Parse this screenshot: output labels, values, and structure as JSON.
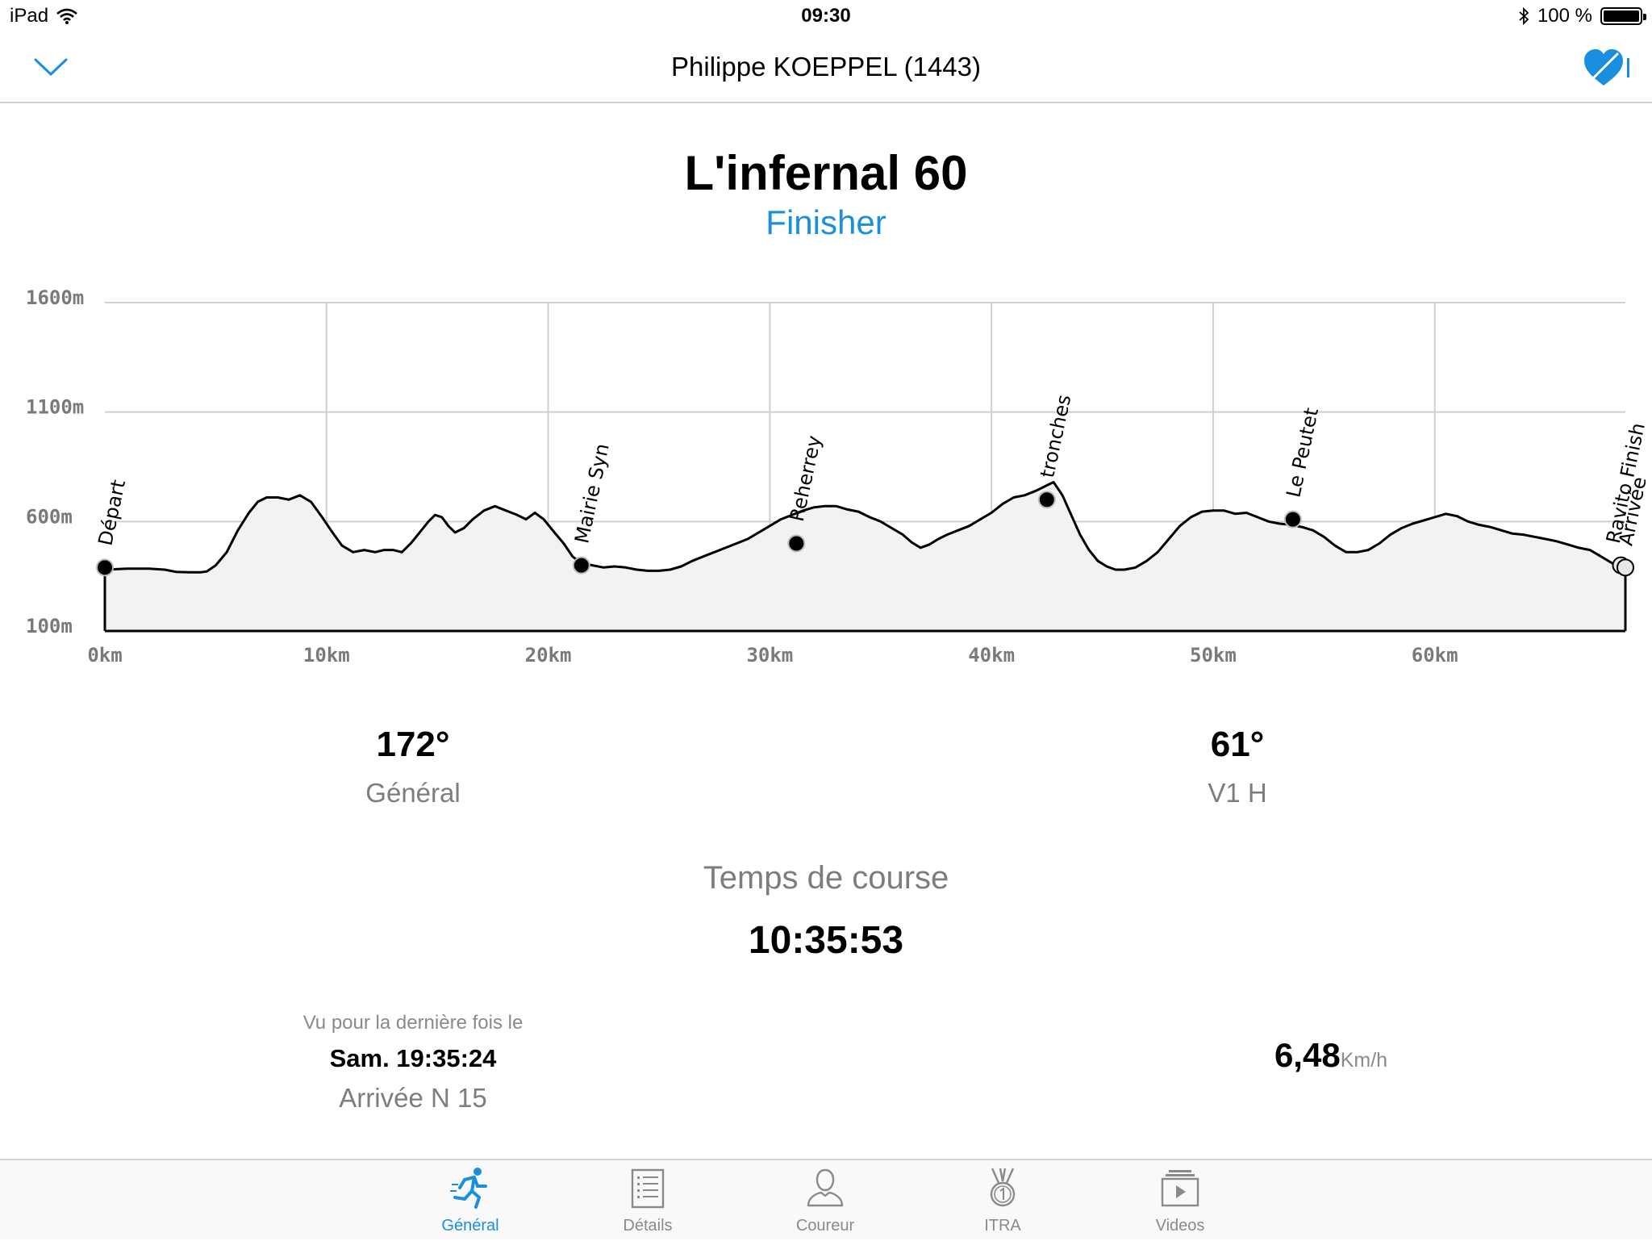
{
  "status_bar": {
    "device": "iPad",
    "time": "09:30",
    "battery": "100 %",
    "icons": [
      "wifi-icon",
      "bluetooth-icon",
      "battery-icon"
    ]
  },
  "nav": {
    "title": "Philippe KOEPPEL (1443)",
    "back_icon": "chevron-down-icon",
    "fav_icon": "heart-icon",
    "accent": "#1a8fe0"
  },
  "race": {
    "title": "L'infernal 60",
    "status": "Finisher"
  },
  "chart_data": {
    "type": "area",
    "x_unit": "km",
    "y_unit": "m",
    "xlim": [
      0,
      68.6
    ],
    "ylim": [
      100,
      1600
    ],
    "x_ticks": [
      "0km",
      "10km",
      "20km",
      "30km",
      "40km",
      "50km",
      "60km"
    ],
    "y_ticks": [
      "1600m",
      "1100m",
      "600m",
      "100m"
    ],
    "grid": true,
    "profile": [
      [
        0,
        380
      ],
      [
        1,
        385
      ],
      [
        2,
        385
      ],
      [
        2.7,
        380
      ],
      [
        3.2,
        370
      ],
      [
        3.8,
        368
      ],
      [
        4.3,
        368
      ],
      [
        4.6,
        372
      ],
      [
        5.0,
        400
      ],
      [
        5.5,
        460
      ],
      [
        6.0,
        560
      ],
      [
        6.5,
        640
      ],
      [
        6.9,
        690
      ],
      [
        7.3,
        710
      ],
      [
        7.8,
        710
      ],
      [
        8.3,
        700
      ],
      [
        8.8,
        720
      ],
      [
        9.3,
        690
      ],
      [
        9.8,
        620
      ],
      [
        10.2,
        560
      ],
      [
        10.7,
        490
      ],
      [
        11.2,
        460
      ],
      [
        11.7,
        470
      ],
      [
        12.2,
        460
      ],
      [
        12.6,
        470
      ],
      [
        13.0,
        470
      ],
      [
        13.4,
        460
      ],
      [
        13.8,
        500
      ],
      [
        14.2,
        550
      ],
      [
        14.6,
        600
      ],
      [
        14.9,
        630
      ],
      [
        15.2,
        620
      ],
      [
        15.5,
        580
      ],
      [
        15.8,
        550
      ],
      [
        16.2,
        570
      ],
      [
        16.6,
        610
      ],
      [
        17.1,
        650
      ],
      [
        17.6,
        670
      ],
      [
        18.1,
        650
      ],
      [
        18.6,
        630
      ],
      [
        19.0,
        610
      ],
      [
        19.4,
        640
      ],
      [
        19.8,
        610
      ],
      [
        20.2,
        560
      ],
      [
        20.7,
        500
      ],
      [
        21.1,
        440
      ],
      [
        21.5,
        410
      ],
      [
        22.0,
        400
      ],
      [
        22.5,
        390
      ],
      [
        23.0,
        395
      ],
      [
        23.5,
        390
      ],
      [
        24.0,
        380
      ],
      [
        24.5,
        375
      ],
      [
        25.0,
        375
      ],
      [
        25.5,
        380
      ],
      [
        26.0,
        395
      ],
      [
        26.5,
        420
      ],
      [
        27.0,
        440
      ],
      [
        27.5,
        460
      ],
      [
        28.0,
        480
      ],
      [
        28.5,
        500
      ],
      [
        29.0,
        520
      ],
      [
        29.5,
        550
      ],
      [
        30.0,
        580
      ],
      [
        30.5,
        610
      ],
      [
        31.0,
        630
      ],
      [
        31.5,
        650
      ],
      [
        32.0,
        665
      ],
      [
        32.5,
        670
      ],
      [
        33.0,
        670
      ],
      [
        33.5,
        655
      ],
      [
        34.0,
        645
      ],
      [
        34.5,
        620
      ],
      [
        35.0,
        600
      ],
      [
        35.5,
        570
      ],
      [
        36.0,
        540
      ],
      [
        36.4,
        505
      ],
      [
        36.8,
        480
      ],
      [
        37.2,
        495
      ],
      [
        37.6,
        520
      ],
      [
        38.0,
        540
      ],
      [
        38.5,
        560
      ],
      [
        39.0,
        580
      ],
      [
        39.5,
        610
      ],
      [
        40.0,
        640
      ],
      [
        40.5,
        680
      ],
      [
        41.0,
        710
      ],
      [
        41.5,
        720
      ],
      [
        42.0,
        740
      ],
      [
        42.4,
        760
      ],
      [
        42.8,
        780
      ],
      [
        43.2,
        720
      ],
      [
        43.6,
        630
      ],
      [
        44.0,
        540
      ],
      [
        44.4,
        470
      ],
      [
        44.8,
        420
      ],
      [
        45.2,
        395
      ],
      [
        45.6,
        380
      ],
      [
        46.0,
        380
      ],
      [
        46.5,
        390
      ],
      [
        47.0,
        420
      ],
      [
        47.5,
        460
      ],
      [
        48.0,
        520
      ],
      [
        48.5,
        580
      ],
      [
        49.0,
        620
      ],
      [
        49.5,
        645
      ],
      [
        50.0,
        650
      ],
      [
        50.5,
        650
      ],
      [
        51.0,
        635
      ],
      [
        51.5,
        640
      ],
      [
        52.0,
        620
      ],
      [
        52.5,
        600
      ],
      [
        53.0,
        590
      ],
      [
        53.5,
        585
      ],
      [
        54.0,
        575
      ],
      [
        54.5,
        560
      ],
      [
        55.0,
        530
      ],
      [
        55.5,
        490
      ],
      [
        56.0,
        460
      ],
      [
        56.5,
        460
      ],
      [
        57.0,
        470
      ],
      [
        57.5,
        500
      ],
      [
        58.0,
        540
      ],
      [
        58.5,
        570
      ],
      [
        59.0,
        590
      ],
      [
        59.5,
        605
      ],
      [
        60.0,
        620
      ],
      [
        60.5,
        635
      ],
      [
        61.0,
        625
      ],
      [
        61.5,
        600
      ],
      [
        62.0,
        585
      ],
      [
        62.5,
        575
      ],
      [
        63.0,
        560
      ],
      [
        63.5,
        545
      ],
      [
        64.0,
        540
      ],
      [
        64.5,
        530
      ],
      [
        65.0,
        520
      ],
      [
        65.5,
        510
      ],
      [
        66.0,
        495
      ],
      [
        66.5,
        480
      ],
      [
        67.0,
        470
      ],
      [
        67.5,
        440
      ],
      [
        68.0,
        410
      ],
      [
        68.6,
        380
      ]
    ],
    "waypoints": [
      {
        "name": "Départ",
        "km": 0,
        "m": 390
      },
      {
        "name": "Mairie Syn",
        "km": 21.5,
        "m": 400
      },
      {
        "name": "Reherrey",
        "km": 31.2,
        "m": 500
      },
      {
        "name": "tronches",
        "km": 42.5,
        "m": 700
      },
      {
        "name": "Le Peutet",
        "km": 53.6,
        "m": 610
      },
      {
        "name": "Ravito Finish",
        "km": 68.4,
        "m": 400
      },
      {
        "name": "Arrivée",
        "km": 68.6,
        "m": 390
      }
    ]
  },
  "stats": {
    "general_rank": "172°",
    "general_label": "Général",
    "category_rank": "61°",
    "category_label": "V1 H",
    "race_time_label": "Temps de course",
    "race_time": "10:35:53",
    "last_seen_caption": "Vu pour la dernière fois le",
    "last_seen_time": "Sam. 19:35:24",
    "last_point": "Arrivée N 15",
    "speed_value": "6,48",
    "speed_unit": "Km/h"
  },
  "tabs": [
    {
      "label": "Général",
      "icon": "runner-icon",
      "active": true
    },
    {
      "label": "Détails",
      "icon": "list-icon",
      "active": false
    },
    {
      "label": "Coureur",
      "icon": "person-icon",
      "active": false
    },
    {
      "label": "ITRA",
      "icon": "medal-icon",
      "active": false
    },
    {
      "label": "Videos",
      "icon": "video-icon",
      "active": false
    }
  ]
}
